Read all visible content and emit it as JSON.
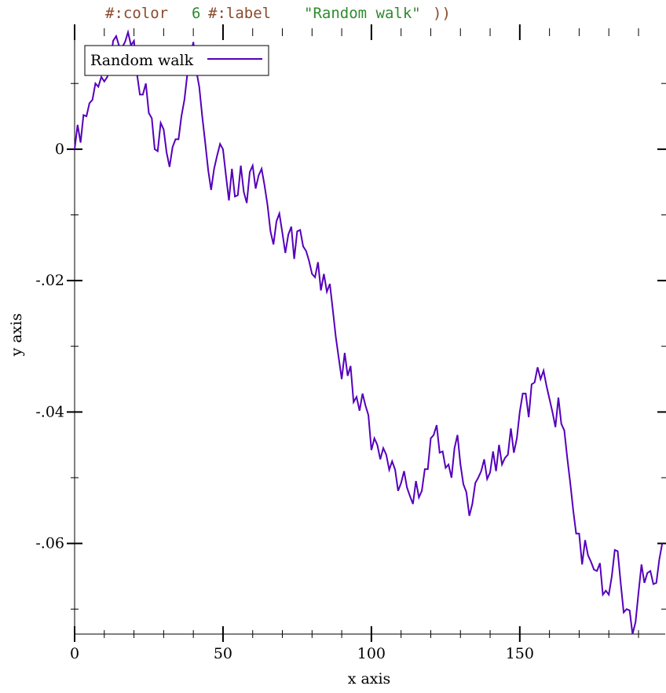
{
  "code": {
    "color_kw": "#:color",
    "color_val": "6",
    "label_kw": "#:label",
    "label_val": "\"Random walk\"",
    "close": "))"
  },
  "chart_data": {
    "type": "line",
    "xlabel": "x axis",
    "ylabel": "y axis",
    "xlim": [
      0,
      199
    ],
    "ylim": [
      -0.0738,
      0.0178
    ],
    "x_ticks": [
      0,
      50,
      100,
      150
    ],
    "y_ticks": [
      0,
      -0.02,
      -0.04,
      -0.06
    ],
    "x_tick_labels": [
      "0",
      "50",
      "100",
      "150"
    ],
    "y_tick_labels": [
      "0",
      "-.02",
      "-.04",
      "-.06"
    ],
    "grid": false,
    "legend": "top-left",
    "series": [
      {
        "name": "Random walk",
        "color": "#5500bb",
        "values": [
          0.0,
          0.0037,
          0.001,
          0.0052,
          0.005,
          0.007,
          0.0075,
          0.01,
          0.0095,
          0.011,
          0.0103,
          0.011,
          0.013,
          0.0165,
          0.0172,
          0.0157,
          0.0155,
          0.0163,
          0.0178,
          0.0158,
          0.0165,
          0.0115,
          0.0083,
          0.0083,
          0.01,
          0.0055,
          0.0047,
          0.0,
          -0.0003,
          0.004,
          0.003,
          -0.0005,
          -0.0027,
          0.0003,
          0.0015,
          0.0015,
          0.005,
          0.0075,
          0.0115,
          0.014,
          0.0163,
          0.012,
          0.0095,
          0.005,
          0.001,
          -0.0032,
          -0.0062,
          -0.003,
          -0.001,
          0.0008,
          0.0,
          -0.004,
          -0.0078,
          -0.003,
          -0.0072,
          -0.007,
          -0.0025,
          -0.0065,
          -0.0082,
          -0.0035,
          -0.0025,
          -0.006,
          -0.004,
          -0.003,
          -0.0055,
          -0.0085,
          -0.0125,
          -0.0145,
          -0.011,
          -0.0098,
          -0.0127,
          -0.0158,
          -0.013,
          -0.0118,
          -0.0167,
          -0.0125,
          -0.0123,
          -0.0148,
          -0.0155,
          -0.017,
          -0.019,
          -0.0195,
          -0.0172,
          -0.0215,
          -0.019,
          -0.0217,
          -0.0205,
          -0.0245,
          -0.0285,
          -0.0318,
          -0.035,
          -0.031,
          -0.0345,
          -0.033,
          -0.0385,
          -0.0377,
          -0.0398,
          -0.0372,
          -0.039,
          -0.0405,
          -0.0458,
          -0.044,
          -0.045,
          -0.0472,
          -0.0455,
          -0.0465,
          -0.0488,
          -0.0475,
          -0.0488,
          -0.052,
          -0.0508,
          -0.049,
          -0.0515,
          -0.0528,
          -0.054,
          -0.0505,
          -0.053,
          -0.052,
          -0.0487,
          -0.0487,
          -0.044,
          -0.0435,
          -0.042,
          -0.0462,
          -0.046,
          -0.0485,
          -0.048,
          -0.05,
          -0.0455,
          -0.0435,
          -0.048,
          -0.051,
          -0.0522,
          -0.0558,
          -0.054,
          -0.0508,
          -0.05,
          -0.049,
          -0.0472,
          -0.0502,
          -0.0492,
          -0.046,
          -0.049,
          -0.045,
          -0.048,
          -0.047,
          -0.0465,
          -0.0425,
          -0.0462,
          -0.044,
          -0.04,
          -0.0372,
          -0.0372,
          -0.0408,
          -0.0358,
          -0.0355,
          -0.0332,
          -0.035,
          -0.0337,
          -0.036,
          -0.038,
          -0.04,
          -0.0423,
          -0.0378,
          -0.0418,
          -0.0428,
          -0.047,
          -0.0508,
          -0.055,
          -0.0585,
          -0.0585,
          -0.0632,
          -0.0595,
          -0.0618,
          -0.0628,
          -0.064,
          -0.0642,
          -0.063,
          -0.0678,
          -0.0672,
          -0.0678,
          -0.065,
          -0.061,
          -0.0612,
          -0.066,
          -0.0705,
          -0.07,
          -0.0702,
          -0.0738,
          -0.072,
          -0.0675,
          -0.0632,
          -0.066,
          -0.0645,
          -0.0642,
          -0.0662,
          -0.066,
          -0.0625,
          -0.06
        ]
      }
    ]
  }
}
